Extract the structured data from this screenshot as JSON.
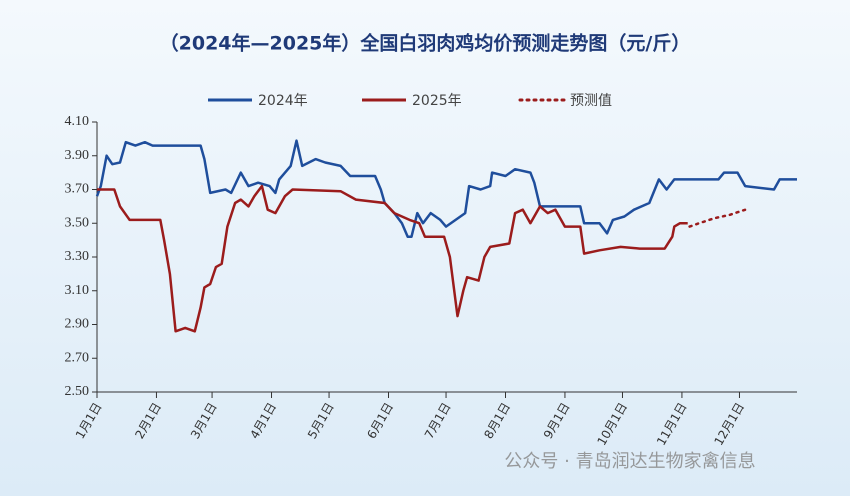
{
  "chart_data": {
    "type": "line",
    "title": "（2024年—2025年）全国白羽肉鸡均价预测走势图（元/斤）",
    "watermark": "公众号 · 青岛润达生物家禽信息",
    "xlim": [
      0,
      365
    ],
    "xticks": [
      {
        "value": 0,
        "label": "1月1日"
      },
      {
        "value": 31,
        "label": "2月1日"
      },
      {
        "value": 60,
        "label": "3月1日"
      },
      {
        "value": 91,
        "label": "4月1日"
      },
      {
        "value": 121,
        "label": "5月1日"
      },
      {
        "value": 152,
        "label": "6月1日"
      },
      {
        "value": 182,
        "label": "7月1日"
      },
      {
        "value": 213,
        "label": "8月1日"
      },
      {
        "value": 244,
        "label": "9月1日"
      },
      {
        "value": 274,
        "label": "10月1日"
      },
      {
        "value": 305,
        "label": "11月1日"
      },
      {
        "value": 335,
        "label": "12月1日"
      }
    ],
    "ylim": [
      2.5,
      4.1
    ],
    "yticks": [
      {
        "value": 2.5,
        "label": "2.50"
      },
      {
        "value": 2.7,
        "label": "2.70"
      },
      {
        "value": 2.9,
        "label": "2.90"
      },
      {
        "value": 3.1,
        "label": "3.10"
      },
      {
        "value": 3.3,
        "label": "3.30"
      },
      {
        "value": 3.5,
        "label": "3.50"
      },
      {
        "value": 3.7,
        "label": "3.70"
      },
      {
        "value": 3.9,
        "label": "3.90"
      },
      {
        "value": 4.1,
        "label": "4.10"
      }
    ],
    "series": [
      {
        "name": "2024年",
        "color": "#1f4e9c",
        "style": "solid",
        "x": [
          0,
          2,
          5,
          8,
          12,
          15,
          20,
          25,
          29,
          54,
          56,
          59,
          67,
          70,
          75,
          79,
          84,
          90,
          93,
          95,
          101,
          104,
          107,
          114,
          119,
          127,
          132,
          145,
          148,
          150,
          155,
          159,
          162,
          164,
          167,
          170,
          174,
          179,
          182,
          187,
          192,
          194,
          200,
          205,
          206,
          213,
          218,
          226,
          228,
          231,
          252,
          254,
          262,
          266,
          269,
          275,
          280,
          288,
          293,
          297,
          301,
          324,
          327,
          334,
          338,
          353,
          356,
          365
        ],
        "values": [
          3.66,
          3.72,
          3.9,
          3.85,
          3.86,
          3.98,
          3.96,
          3.98,
          3.96,
          3.96,
          3.88,
          3.68,
          3.7,
          3.68,
          3.8,
          3.72,
          3.74,
          3.72,
          3.68,
          3.76,
          3.84,
          3.99,
          3.84,
          3.88,
          3.86,
          3.84,
          3.78,
          3.78,
          3.7,
          3.62,
          3.56,
          3.5,
          3.42,
          3.42,
          3.56,
          3.5,
          3.56,
          3.52,
          3.48,
          3.52,
          3.56,
          3.72,
          3.7,
          3.72,
          3.8,
          3.78,
          3.82,
          3.8,
          3.74,
          3.6,
          3.6,
          3.5,
          3.5,
          3.44,
          3.52,
          3.54,
          3.58,
          3.62,
          3.76,
          3.7,
          3.76,
          3.76,
          3.8,
          3.8,
          3.72,
          3.7,
          3.76,
          3.76
        ]
      },
      {
        "name": "2025年",
        "color": "#9b1c1c",
        "style": "solid",
        "x": [
          0,
          9,
          12,
          17,
          33,
          35,
          38,
          41,
          46,
          51,
          54,
          56,
          59,
          62,
          65,
          68,
          72,
          75,
          79,
          82,
          86,
          89,
          93,
          98,
          102,
          127,
          135,
          150,
          155,
          163,
          168,
          171,
          181,
          184,
          188,
          191,
          193,
          199,
          202,
          205,
          215,
          218,
          222,
          226,
          231,
          235,
          239,
          244,
          252,
          254,
          262,
          273,
          283,
          296,
          300,
          301,
          304,
          308
        ],
        "values": [
          3.7,
          3.7,
          3.6,
          3.52,
          3.52,
          3.4,
          3.2,
          2.86,
          2.88,
          2.86,
          3.0,
          3.12,
          3.14,
          3.24,
          3.26,
          3.48,
          3.62,
          3.64,
          3.6,
          3.66,
          3.72,
          3.58,
          3.56,
          3.66,
          3.7,
          3.69,
          3.64,
          3.62,
          3.56,
          3.52,
          3.5,
          3.42,
          3.42,
          3.3,
          2.95,
          3.1,
          3.18,
          3.16,
          3.3,
          3.36,
          3.38,
          3.56,
          3.58,
          3.5,
          3.6,
          3.56,
          3.58,
          3.48,
          3.48,
          3.32,
          3.34,
          3.36,
          3.35,
          3.35,
          3.42,
          3.48,
          3.5,
          3.5
        ]
      },
      {
        "name": "预测值",
        "color": "#9b1c1c",
        "style": "dotted",
        "x": [
          309,
          314,
          322,
          330,
          338
        ],
        "values": [
          3.48,
          3.5,
          3.53,
          3.55,
          3.58
        ]
      }
    ]
  }
}
